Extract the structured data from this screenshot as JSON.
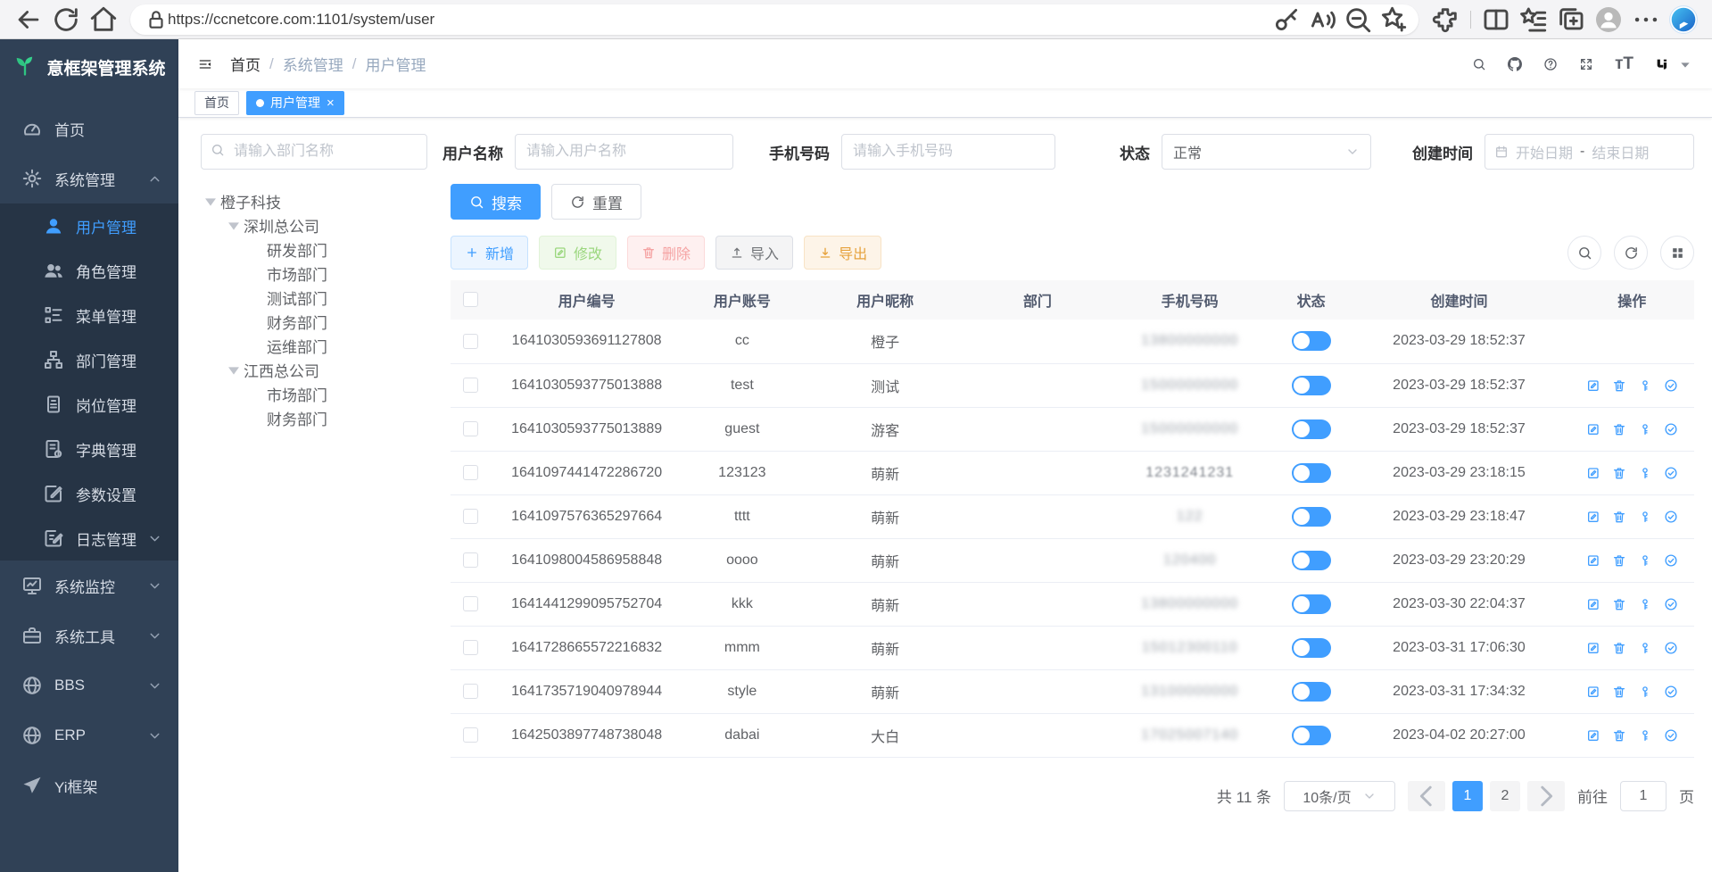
{
  "browser": {
    "url": "https://ccnetcore.com:1101/system/user"
  },
  "sidebar": {
    "title": "意框架管理系统",
    "menu": [
      {
        "label": "首页",
        "icon": "dashboard-icon",
        "level": 0
      },
      {
        "label": "系统管理",
        "icon": "gear-icon",
        "level": 0,
        "arrow": "up",
        "expanded": true
      },
      {
        "label": "用户管理",
        "icon": "user-icon",
        "level": 1,
        "active": true
      },
      {
        "label": "角色管理",
        "icon": "role-users-icon",
        "level": 1
      },
      {
        "label": "菜单管理",
        "icon": "menu-tree-icon",
        "level": 1
      },
      {
        "label": "部门管理",
        "icon": "dept-tree-icon",
        "level": 1
      },
      {
        "label": "岗位管理",
        "icon": "post-badge-icon",
        "level": 1
      },
      {
        "label": "字典管理",
        "icon": "dict-book-icon",
        "level": 1
      },
      {
        "label": "参数设置",
        "icon": "param-edit-icon",
        "level": 1
      },
      {
        "label": "日志管理",
        "icon": "log-icon",
        "level": 1,
        "arrow": "down"
      },
      {
        "label": "系统监控",
        "icon": "monitor-icon",
        "level": 0,
        "arrow": "down"
      },
      {
        "label": "系统工具",
        "icon": "toolbox-icon",
        "level": 0,
        "arrow": "down"
      },
      {
        "label": "BBS",
        "icon": "globe-icon",
        "level": 0,
        "arrow": "down"
      },
      {
        "label": "ERP",
        "icon": "globe-icon",
        "level": 0,
        "arrow": "down"
      },
      {
        "label": "Yi框架",
        "icon": "paper-plane-icon",
        "level": 0
      }
    ]
  },
  "navbar": {
    "breadcrumb": [
      "首页",
      "系统管理",
      "用户管理"
    ],
    "separator": "/"
  },
  "tags": [
    {
      "label": "首页",
      "active": false,
      "closable": false
    },
    {
      "label": "用户管理",
      "active": true,
      "closable": true
    }
  ],
  "filters": {
    "dept_placeholder": "请输入部门名称",
    "username_label": "用户名称",
    "username_placeholder": "请输入用户名称",
    "phone_label": "手机号码",
    "phone_placeholder": "请输入手机号码",
    "status_label": "状态",
    "status_value": "正常",
    "created_label": "创建时间",
    "date_start_placeholder": "开始日期",
    "date_separator": "-",
    "date_end_placeholder": "结束日期"
  },
  "search_buttons": {
    "search": "搜索",
    "reset": "重置"
  },
  "tree": [
    {
      "label": "橙子科技",
      "level": 0,
      "caret": true
    },
    {
      "label": "深圳总公司",
      "level": 1,
      "caret": true
    },
    {
      "label": "研发部门",
      "level": 2,
      "caret": false
    },
    {
      "label": "市场部门",
      "level": 2,
      "caret": false
    },
    {
      "label": "测试部门",
      "level": 2,
      "caret": false
    },
    {
      "label": "财务部门",
      "level": 2,
      "caret": false
    },
    {
      "label": "运维部门",
      "level": 2,
      "caret": false
    },
    {
      "label": "江西总公司",
      "level": 1,
      "caret": true
    },
    {
      "label": "市场部门",
      "level": 2,
      "caret": false
    },
    {
      "label": "财务部门",
      "level": 2,
      "caret": false
    }
  ],
  "toolbar": {
    "add": "新增",
    "edit": "修改",
    "delete": "删除",
    "import": "导入",
    "export": "导出"
  },
  "table": {
    "columns": [
      "用户编号",
      "用户账号",
      "用户昵称",
      "部门",
      "手机号码",
      "状态",
      "创建时间",
      "操作"
    ],
    "rows": [
      {
        "id": "1641030593691127808",
        "account": "cc",
        "nickname": "橙子",
        "dept": "",
        "phone_masked": "13800000000",
        "phone_blur": "full",
        "status": true,
        "created": "2023-03-29 18:52:37",
        "actions": false
      },
      {
        "id": "1641030593775013888",
        "account": "test",
        "nickname": "测试",
        "dept": "",
        "phone_masked": "15000000000",
        "phone_blur": "full",
        "status": true,
        "created": "2023-03-29 18:52:37",
        "actions": true
      },
      {
        "id": "1641030593775013889",
        "account": "guest",
        "nickname": "游客",
        "dept": "",
        "phone_masked": "15000000000",
        "phone_blur": "full",
        "status": true,
        "created": "2023-03-29 18:52:37",
        "actions": true
      },
      {
        "id": "1641097441472286720",
        "account": "123123",
        "nickname": "萌新",
        "dept": "",
        "phone_masked": "1231241231",
        "phone_blur": "semi",
        "status": true,
        "created": "2023-03-29 23:18:15",
        "actions": true
      },
      {
        "id": "1641097576365297664",
        "account": "tttt",
        "nickname": "萌新",
        "dept": "",
        "phone_masked": "122",
        "phone_blur": "full",
        "status": true,
        "created": "2023-03-29 23:18:47",
        "actions": true
      },
      {
        "id": "1641098004586958848",
        "account": "oooo",
        "nickname": "萌新",
        "dept": "",
        "phone_masked": "120400",
        "phone_blur": "full",
        "status": true,
        "created": "2023-03-29 23:20:29",
        "actions": true
      },
      {
        "id": "1641441299095752704",
        "account": "kkk",
        "nickname": "萌新",
        "dept": "",
        "phone_masked": "13800000000",
        "phone_blur": "full",
        "status": true,
        "created": "2023-03-30 22:04:37",
        "actions": true
      },
      {
        "id": "1641728665572216832",
        "account": "mmm",
        "nickname": "萌新",
        "dept": "",
        "phone_masked": "15012300110",
        "phone_blur": "full",
        "status": true,
        "created": "2023-03-31 17:06:30",
        "actions": true
      },
      {
        "id": "1641735719040978944",
        "account": "style",
        "nickname": "萌新",
        "dept": "",
        "phone_masked": "13100000000",
        "phone_blur": "full",
        "status": true,
        "created": "2023-03-31 17:34:32",
        "actions": true
      },
      {
        "id": "1642503897748738048",
        "account": "dabai",
        "nickname": "大白",
        "dept": "",
        "phone_masked": "17025007140",
        "phone_blur": "full",
        "status": true,
        "created": "2023-04-02 20:27:00",
        "actions": true
      }
    ]
  },
  "pagination": {
    "total": "共 11 条",
    "page_size": "10条/页",
    "pages": [
      "1",
      "2"
    ],
    "active_page": "1",
    "goto_label": "前往",
    "goto_value": "1",
    "unit": "页"
  }
}
